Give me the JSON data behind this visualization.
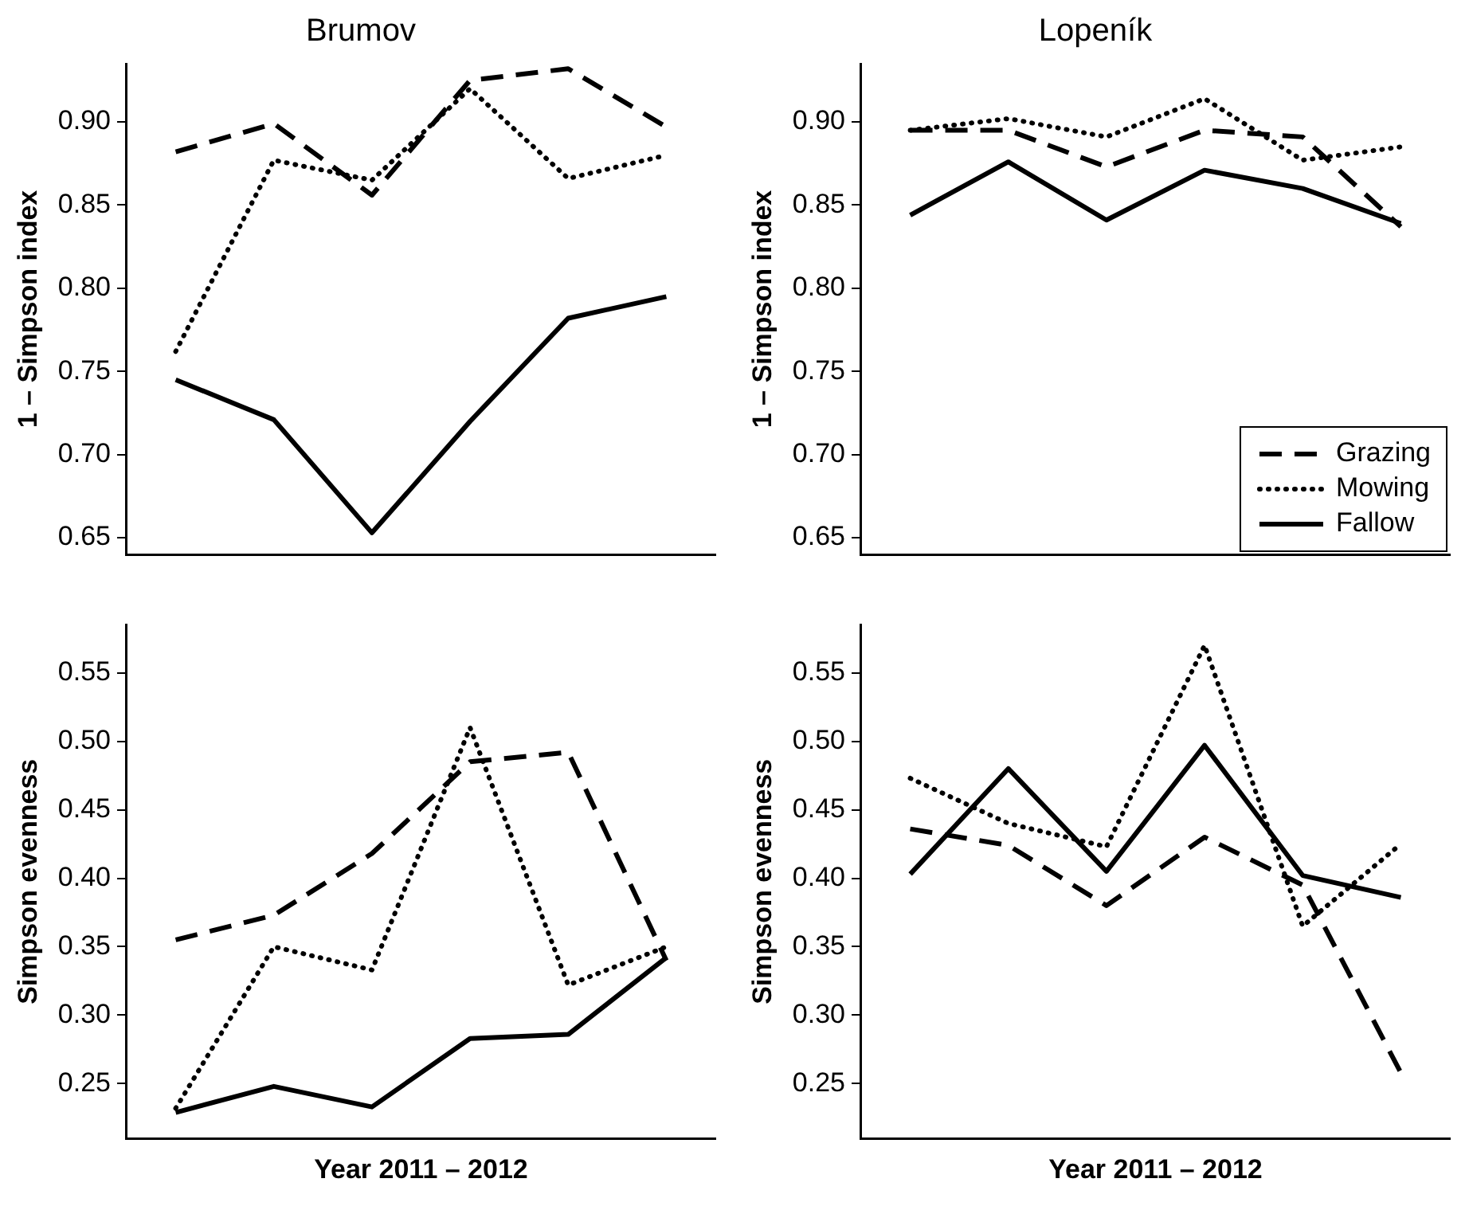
{
  "chart_data": [
    {
      "type": "line",
      "title": "Brumov",
      "ylabel": "1 – Simpson index",
      "categories": [
        null,
        null,
        null,
        null,
        null,
        null
      ],
      "ylim": [
        0.64,
        0.935
      ],
      "yticks": [
        {
          "value": 0.65,
          "label": "0.65"
        },
        {
          "value": 0.7,
          "label": "0.70"
        },
        {
          "value": 0.75,
          "label": "0.75"
        },
        {
          "value": 0.8,
          "label": "0.80"
        },
        {
          "value": 0.85,
          "label": "0.85"
        },
        {
          "value": 0.9,
          "label": "0.90"
        }
      ],
      "tick_labels": "y",
      "grid": false,
      "legend": false,
      "series": [
        {
          "color": "#000000",
          "line_style": "dashed",
          "values": [
            0.882,
            0.899,
            0.856,
            0.925,
            0.932,
            0.897
          ]
        },
        {
          "color": "#000000",
          "line_style": "dotted",
          "values": [
            0.762,
            0.877,
            0.865,
            0.92,
            0.866,
            0.88
          ]
        },
        {
          "color": "#000000",
          "line_style": "solid",
          "values": [
            0.745,
            0.721,
            0.653,
            0.72,
            0.782,
            0.795
          ]
        }
      ]
    },
    {
      "type": "line",
      "title": "Lopeník",
      "ylabel": "1 – Simpson index",
      "categories": [
        null,
        null,
        null,
        null,
        null,
        null
      ],
      "ylim": [
        0.64,
        0.935
      ],
      "yticks": [
        {
          "value": 0.65,
          "label": "0.65"
        },
        {
          "value": 0.7,
          "label": "0.70"
        },
        {
          "value": 0.75,
          "label": "0.75"
        },
        {
          "value": 0.8,
          "label": "0.80"
        },
        {
          "value": 0.85,
          "label": "0.85"
        },
        {
          "value": 0.9,
          "label": "0.90"
        }
      ],
      "tick_labels": "y",
      "grid": false,
      "legend": "bottom right",
      "series": [
        {
          "name": "Grazing",
          "color": "#000000",
          "line_style": "dashed",
          "values": [
            0.895,
            0.895,
            0.873,
            0.895,
            0.891,
            0.837
          ]
        },
        {
          "name": "Mowing",
          "color": "#000000",
          "line_style": "dotted",
          "values": [
            0.895,
            0.902,
            0.891,
            0.914,
            0.877,
            0.885
          ]
        },
        {
          "name": "Fallow",
          "color": "#000000",
          "line_style": "solid",
          "values": [
            0.844,
            0.876,
            0.841,
            0.871,
            0.86,
            0.839
          ]
        }
      ]
    },
    {
      "type": "line",
      "ylabel": "Simpson evenness",
      "xlabel": "Year 2011 – 2012",
      "categories": [
        null,
        null,
        null,
        null,
        null,
        null
      ],
      "ylim": [
        0.21,
        0.585
      ],
      "yticks": [
        {
          "value": 0.25,
          "label": "0.25"
        },
        {
          "value": 0.3,
          "label": "0.30"
        },
        {
          "value": 0.35,
          "label": "0.35"
        },
        {
          "value": 0.4,
          "label": "0.40"
        },
        {
          "value": 0.45,
          "label": "0.45"
        },
        {
          "value": 0.5,
          "label": "0.50"
        },
        {
          "value": 0.55,
          "label": "0.55"
        }
      ],
      "tick_labels": "y",
      "grid": false,
      "legend": false,
      "series": [
        {
          "color": "#000000",
          "line_style": "dashed",
          "values": [
            0.355,
            0.373,
            0.418,
            0.485,
            0.492,
            0.34
          ]
        },
        {
          "color": "#000000",
          "line_style": "dotted",
          "values": [
            0.232,
            0.35,
            0.333,
            0.51,
            0.322,
            0.35
          ]
        },
        {
          "color": "#000000",
          "line_style": "solid",
          "values": [
            0.229,
            0.248,
            0.233,
            0.283,
            0.286,
            0.342
          ]
        }
      ]
    },
    {
      "type": "line",
      "ylabel": "Simpson evenness",
      "xlabel": "Year 2011 – 2012",
      "categories": [
        null,
        null,
        null,
        null,
        null,
        null
      ],
      "ylim": [
        0.21,
        0.585
      ],
      "yticks": [
        {
          "value": 0.25,
          "label": "0.25"
        },
        {
          "value": 0.3,
          "label": "0.30"
        },
        {
          "value": 0.35,
          "label": "0.35"
        },
        {
          "value": 0.4,
          "label": "0.40"
        },
        {
          "value": 0.45,
          "label": "0.45"
        },
        {
          "value": 0.5,
          "label": "0.50"
        },
        {
          "value": 0.55,
          "label": "0.55"
        }
      ],
      "tick_labels": "y",
      "grid": false,
      "legend": false,
      "series": [
        {
          "color": "#000000",
          "line_style": "dashed",
          "values": [
            0.436,
            0.424,
            0.38,
            0.43,
            0.395,
            0.258
          ]
        },
        {
          "color": "#000000",
          "line_style": "dotted",
          "values": [
            0.473,
            0.44,
            0.423,
            0.57,
            0.365,
            0.425
          ]
        },
        {
          "color": "#000000",
          "line_style": "solid",
          "values": [
            0.403,
            0.48,
            0.405,
            0.497,
            0.402,
            0.386
          ]
        }
      ]
    }
  ]
}
